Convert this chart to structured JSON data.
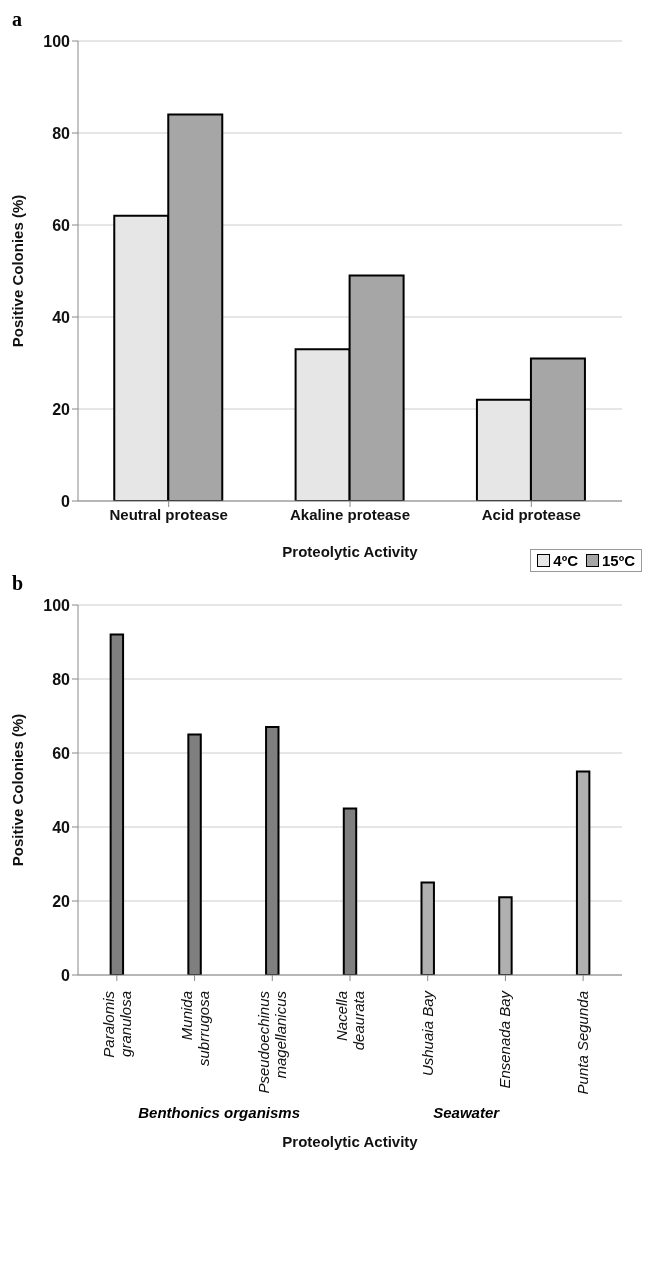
{
  "chart_data": [
    {
      "type": "bar",
      "title": "a",
      "xlabel": "Proteolytic Activity",
      "ylabel": "Positive Colonies (%)",
      "categories": [
        "Neutral protease",
        "Akaline protease",
        "Acid protease"
      ],
      "series": [
        {
          "name": "4ºC",
          "color": "#e6e6e6",
          "values": [
            62,
            33,
            22
          ]
        },
        {
          "name": "15ºC",
          "color": "#a6a6a6",
          "values": [
            84,
            49,
            31
          ]
        }
      ],
      "ylim": [
        0,
        100
      ],
      "yticks": [
        0,
        20,
        40,
        60,
        80,
        100
      ],
      "grid": "y",
      "legend": "bottom right"
    },
    {
      "type": "bar",
      "title": "b",
      "xlabel": "Proteolytic Activity",
      "ylabel": "Positive Colonies (%)",
      "categories": [
        "Paralomis granulosa",
        "Munida subrrugosa",
        "Pseudoechinus magellanicus",
        "Nacella deaurata",
        "Ushuaia Bay",
        "Ensenada Bay",
        "Punta Segunda"
      ],
      "values": [
        92,
        65,
        67,
        45,
        25,
        21,
        55
      ],
      "colors": [
        "#7f7f7f",
        "#7f7f7f",
        "#7f7f7f",
        "#7f7f7f",
        "#b0b0b0",
        "#b0b0b0",
        "#b0b0b0"
      ],
      "annotations": [
        "Benthonics organisms",
        "Seawater"
      ],
      "ylim": [
        0,
        100
      ],
      "yticks": [
        0,
        20,
        40,
        60,
        80,
        100
      ],
      "grid": "y"
    }
  ]
}
